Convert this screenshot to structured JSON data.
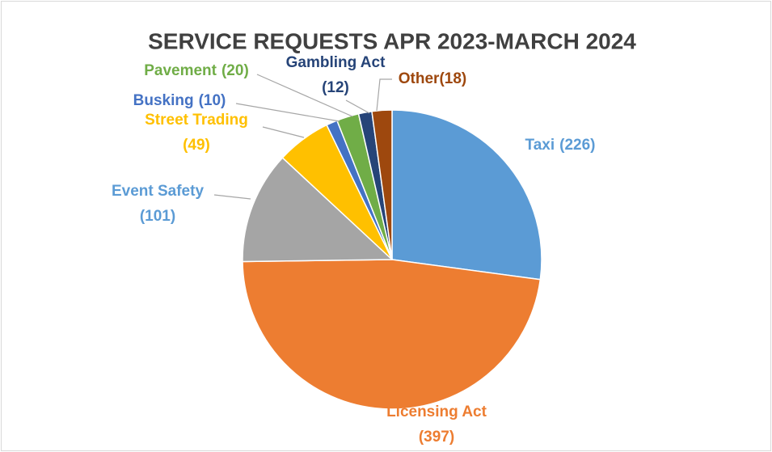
{
  "chart_data": {
    "type": "pie",
    "title": "SERVICE REQUESTS APR 2023-MARCH 2024",
    "categories": [
      "Taxi",
      "Licensing Act",
      "Event Safety",
      "Street Trading",
      "Busking",
      "Pavement",
      "Gambling Act",
      "Other"
    ],
    "values": [
      226,
      397,
      101,
      49,
      10,
      20,
      12,
      18
    ],
    "value_labels": [
      "(226)",
      "(397)",
      "(101)",
      "(49)",
      "(10)",
      "(20)",
      "(12)",
      "(18)"
    ],
    "colors": [
      "#5b9bd5",
      "#ed7d31",
      "#a5a5a5",
      "#ffc000",
      "#4472c4",
      "#70ad47",
      "#264478",
      "#9e480e"
    ],
    "label_colors": [
      "#5b9bd5",
      "#ed7d31",
      "#5b9bd5",
      "#ffc000",
      "#4472c4",
      "#70ad47",
      "#264478",
      "#9e480e"
    ]
  }
}
